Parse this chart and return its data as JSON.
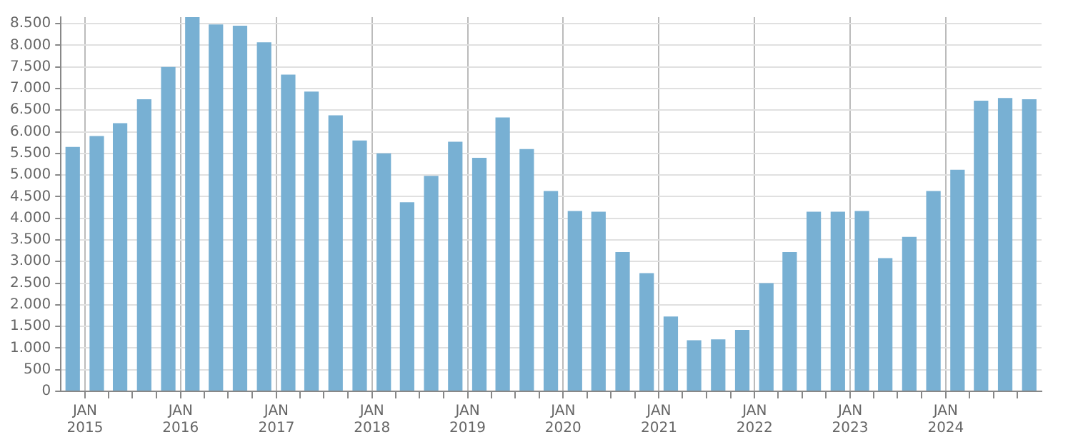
{
  "chart_data": {
    "type": "bar",
    "color": "#78b0d3",
    "x": [
      "2014-11-15",
      "2015-02-15",
      "2015-05-15",
      "2015-08-15",
      "2015-11-15",
      "2016-02-15",
      "2016-05-15",
      "2016-08-15",
      "2016-11-15",
      "2017-02-15",
      "2017-05-15",
      "2017-08-15",
      "2017-11-15",
      "2018-02-15",
      "2018-05-15",
      "2018-08-15",
      "2018-11-15",
      "2019-02-15",
      "2019-05-15",
      "2019-08-15",
      "2019-11-15",
      "2020-02-15",
      "2020-05-15",
      "2020-08-15",
      "2020-11-15",
      "2021-02-15",
      "2021-05-15",
      "2021-08-15",
      "2021-11-15",
      "2022-02-15",
      "2022-05-15",
      "2022-08-15",
      "2022-11-15",
      "2023-02-15",
      "2023-05-15",
      "2023-08-15",
      "2023-11-15",
      "2024-02-15",
      "2024-05-15",
      "2024-08-15",
      "2024-11-15"
    ],
    "values": [
      5650,
      5900,
      6200,
      6750,
      7500,
      8650,
      8480,
      8450,
      8070,
      7320,
      6930,
      6380,
      5800,
      5500,
      4370,
      4980,
      5770,
      5400,
      6330,
      5600,
      4630,
      4170,
      4150,
      3220,
      2730,
      1730,
      1180,
      1200,
      1420,
      2500,
      3220,
      4150,
      4150,
      4170,
      3080,
      3570,
      4630,
      5120,
      6720,
      6780,
      6750
    ],
    "xlim": [
      "2014-10-01",
      "2025-01-01"
    ],
    "xticks": [
      {
        "value": "2015-01-01",
        "label": "JAN 2015"
      },
      {
        "value": "2015-04-01",
        "label": null
      },
      {
        "value": "2015-07-01",
        "label": null
      },
      {
        "value": "2015-10-01",
        "label": null
      },
      {
        "value": "2016-01-01",
        "label": "JAN 2016"
      },
      {
        "value": "2016-04-01",
        "label": null
      },
      {
        "value": "2016-07-01",
        "label": null
      },
      {
        "value": "2016-10-01",
        "label": null
      },
      {
        "value": "2017-01-01",
        "label": "JAN 2017"
      },
      {
        "value": "2017-04-01",
        "label": null
      },
      {
        "value": "2017-07-01",
        "label": null
      },
      {
        "value": "2017-10-01",
        "label": null
      },
      {
        "value": "2018-01-01",
        "label": "JAN 2018"
      },
      {
        "value": "2018-04-01",
        "label": null
      },
      {
        "value": "2018-07-01",
        "label": null
      },
      {
        "value": "2018-10-01",
        "label": null
      },
      {
        "value": "2019-01-01",
        "label": "JAN 2019"
      },
      {
        "value": "2019-04-01",
        "label": null
      },
      {
        "value": "2019-07-01",
        "label": null
      },
      {
        "value": "2019-10-01",
        "label": null
      },
      {
        "value": "2020-01-01",
        "label": "JAN 2020"
      },
      {
        "value": "2020-04-01",
        "label": null
      },
      {
        "value": "2020-07-01",
        "label": null
      },
      {
        "value": "2020-10-01",
        "label": null
      },
      {
        "value": "2021-01-01",
        "label": "JAN 2021"
      },
      {
        "value": "2021-04-01",
        "label": null
      },
      {
        "value": "2021-07-01",
        "label": null
      },
      {
        "value": "2021-10-01",
        "label": null
      },
      {
        "value": "2022-01-01",
        "label": "JAN 2022"
      },
      {
        "value": "2022-04-01",
        "label": null
      },
      {
        "value": "2022-07-01",
        "label": null
      },
      {
        "value": "2022-10-01",
        "label": null
      },
      {
        "value": "2023-01-01",
        "label": "JAN 2023"
      },
      {
        "value": "2023-04-01",
        "label": null
      },
      {
        "value": "2023-07-01",
        "label": null
      },
      {
        "value": "2023-10-01",
        "label": null
      },
      {
        "value": "2024-01-01",
        "label": "JAN 2024"
      },
      {
        "value": "2024-04-01",
        "label": null
      },
      {
        "value": "2024-07-01",
        "label": null
      },
      {
        "value": "2024-10-01",
        "label": null
      }
    ],
    "ylim": [
      0,
      8650
    ],
    "yticks": [
      {
        "value": 0,
        "label": "0"
      },
      {
        "value": 500,
        "label": "500"
      },
      {
        "value": 1000,
        "label": "1.000"
      },
      {
        "value": 1500,
        "label": "1.500"
      },
      {
        "value": 2000,
        "label": "2.000"
      },
      {
        "value": 2500,
        "label": "2.500"
      },
      {
        "value": 3000,
        "label": "3.000"
      },
      {
        "value": 3500,
        "label": "3.500"
      },
      {
        "value": 4000,
        "label": "4.000"
      },
      {
        "value": 4500,
        "label": "4.500"
      },
      {
        "value": 5000,
        "label": "5.000"
      },
      {
        "value": 5500,
        "label": "5.500"
      },
      {
        "value": 6000,
        "label": "6.000"
      },
      {
        "value": 6500,
        "label": "6.500"
      },
      {
        "value": 7000,
        "label": "7.000"
      },
      {
        "value": 7500,
        "label": "7.500"
      },
      {
        "value": 8000,
        "label": "8.000"
      },
      {
        "value": 8500,
        "label": "8.500"
      }
    ],
    "grid": true
  }
}
